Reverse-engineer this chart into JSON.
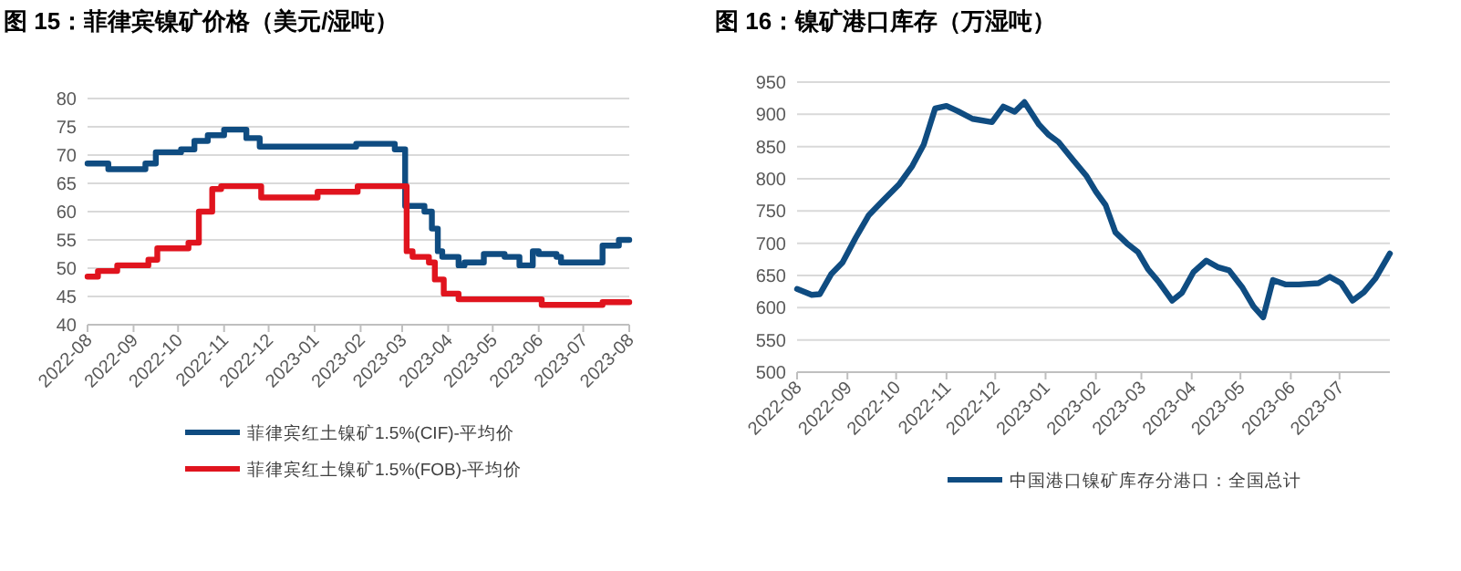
{
  "chart_data": [
    {
      "type": "step",
      "title": "图 15：菲律宾镍矿价格（美元/湿吨）",
      "xlim": [
        "2022-08",
        "2023-08"
      ],
      "xticks": [
        "2022-08",
        "2022-09",
        "2022-10",
        "2022-11",
        "2022-12",
        "2023-01",
        "2023-02",
        "2023-03",
        "2023-04",
        "2023-05",
        "2023-06",
        "2023-07",
        "2023-08"
      ],
      "ylim": [
        40,
        80
      ],
      "yticks": [
        40,
        45,
        50,
        55,
        60,
        65,
        70,
        75,
        80
      ],
      "grid": "y",
      "legend": "bottom",
      "line_style": "solid",
      "series": [
        {
          "name": "菲律宾红土镍矿1.5%(CIF)-平均价",
          "color": "#0f4c81",
          "x": [
            "2022-08-01",
            "2022-08-15",
            "2022-09-09",
            "2022-09-16",
            "2022-10-03",
            "2022-10-12",
            "2022-10-21",
            "2022-11-01",
            "2022-11-16",
            "2022-11-25",
            "2023-01-29",
            "2023-02-24",
            "2023-03-03",
            "2023-03-16",
            "2023-03-21",
            "2023-03-25",
            "2023-03-28",
            "2023-04-08",
            "2023-04-12",
            "2023-04-25",
            "2023-05-09",
            "2023-05-19",
            "2023-05-28",
            "2023-06-01",
            "2023-06-13",
            "2023-06-16",
            "2023-07-14",
            "2023-07-25",
            "2023-08-01"
          ],
          "values": [
            68.5,
            67.5,
            68.5,
            70.5,
            71,
            72.5,
            73.5,
            74.5,
            73,
            71.5,
            72,
            71,
            61,
            60,
            57,
            53,
            52,
            50.5,
            51,
            52.5,
            52,
            50.5,
            53,
            52.5,
            52,
            51,
            54,
            55,
            55
          ]
        },
        {
          "name": "菲律宾红土镍矿1.5%(FOB)-平均价",
          "color": "#e0141e",
          "x": [
            "2022-08-01",
            "2022-08-08",
            "2022-08-21",
            "2022-09-11",
            "2022-09-17",
            "2022-10-08",
            "2022-10-15",
            "2022-10-24",
            "2022-10-30",
            "2022-11-26",
            "2023-01-03",
            "2023-01-30",
            "2023-03-04",
            "2023-03-08",
            "2023-03-19",
            "2023-03-23",
            "2023-03-29",
            "2023-04-08",
            "2023-06-03",
            "2023-07-14",
            "2023-08-01"
          ],
          "values": [
            48.5,
            49.5,
            50.5,
            51.5,
            53.5,
            54.5,
            60,
            64,
            64.5,
            62.5,
            63.5,
            64.5,
            53,
            52,
            51,
            48,
            45.5,
            44.5,
            43.5,
            44,
            44
          ]
        }
      ]
    },
    {
      "type": "line",
      "title": "图 16：镍矿港口库存（万湿吨）",
      "xlim": [
        "2022-08",
        "2023-08"
      ],
      "xticks": [
        "2022-08",
        "2022-09",
        "2022-10",
        "2022-11",
        "2022-12",
        "2023-01",
        "2023-02",
        "2023-03",
        "2023-04",
        "2023-05",
        "2023-06",
        "2023-07"
      ],
      "ylim": [
        500,
        950
      ],
      "yticks": [
        500,
        550,
        600,
        650,
        700,
        750,
        800,
        850,
        900,
        950
      ],
      "grid": "y",
      "legend": "bottom",
      "line_style": "solid",
      "series": [
        {
          "name": "中国港口镍矿库存分港口：全国总计",
          "color": "#0f4c81",
          "x": [
            "2022-08-01",
            "2022-08-10",
            "2022-08-15",
            "2022-08-22",
            "2022-08-29",
            "2022-09-06",
            "2022-09-14",
            "2022-09-22",
            "2022-10-03",
            "2022-10-11",
            "2022-10-18",
            "2022-10-25",
            "2022-11-01",
            "2022-11-08",
            "2022-11-17",
            "2022-11-29",
            "2022-12-06",
            "2022-12-13",
            "2022-12-19",
            "2022-12-28",
            "2023-01-03",
            "2023-01-09",
            "2023-01-18",
            "2023-01-26",
            "2023-02-01",
            "2023-02-07",
            "2023-02-13",
            "2023-02-20",
            "2023-02-27",
            "2023-03-05",
            "2023-03-12",
            "2023-03-20",
            "2023-03-26",
            "2023-04-02",
            "2023-04-10",
            "2023-04-17",
            "2023-04-24",
            "2023-05-02",
            "2023-05-09",
            "2023-05-15",
            "2023-05-21",
            "2023-05-29",
            "2023-06-06",
            "2023-06-18",
            "2023-06-25",
            "2023-07-02",
            "2023-07-09",
            "2023-07-16",
            "2023-07-23",
            "2023-08-01"
          ],
          "values": [
            629,
            620,
            621,
            652,
            670,
            708,
            743,
            764,
            792,
            820,
            853,
            909,
            913,
            905,
            893,
            888,
            912,
            904,
            919,
            884,
            868,
            857,
            829,
            805,
            780,
            759,
            717,
            700,
            686,
            660,
            639,
            611,
            623,
            655,
            673,
            663,
            658,
            632,
            602,
            585,
            643,
            636,
            636,
            638,
            648,
            638,
            611,
            624,
            645,
            684
          ]
        }
      ]
    }
  ]
}
